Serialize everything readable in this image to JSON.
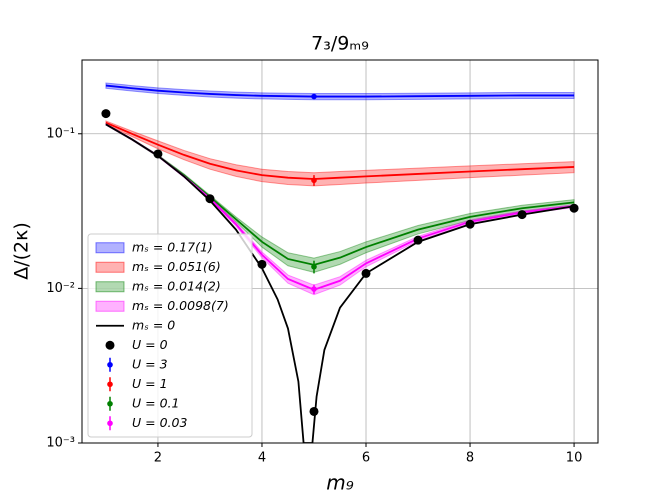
{
  "chart_data": {
    "type": "line",
    "title": "7₃/9ₘ₉",
    "xlabel": "m₉",
    "ylabel": "Δ/(2κ)",
    "xlim": [
      0.54,
      10.46
    ],
    "ylim": [
      0.001,
      0.3
    ],
    "log_y": true,
    "grid": true,
    "legend": "lower left",
    "xticks": [
      2,
      4,
      6,
      8,
      10
    ],
    "yticks": [
      {
        "value": 0.001,
        "label": "10⁻³"
      },
      {
        "value": 0.01,
        "label": "10⁻²"
      },
      {
        "value": 0.1,
        "label": "10⁻¹"
      }
    ],
    "bands": [
      {
        "name": "mₛ = 0.17(1)",
        "color": "#0000ff",
        "x": [
          1,
          1.5,
          2,
          2.5,
          3,
          3.5,
          4,
          4.5,
          5,
          5.5,
          6,
          7,
          8,
          9,
          10
        ],
        "values": [
          0.205,
          0.197,
          0.19,
          0.185,
          0.181,
          0.178,
          0.176,
          0.175,
          0.174,
          0.174,
          0.174,
          0.175,
          0.176,
          0.177,
          0.177
        ],
        "errors": [
          0.008,
          0.008,
          0.008,
          0.008,
          0.008,
          0.008,
          0.008,
          0.008,
          0.008,
          0.008,
          0.008,
          0.008,
          0.008,
          0.008,
          0.008
        ]
      },
      {
        "name": "mₛ = 0.051(6)",
        "color": "#ff0000",
        "x": [
          1,
          1.5,
          2,
          2.5,
          3,
          3.5,
          4,
          4.5,
          5,
          5.5,
          6,
          7,
          8,
          9,
          10
        ],
        "values": [
          0.118,
          0.1,
          0.085,
          0.073,
          0.064,
          0.058,
          0.054,
          0.052,
          0.051,
          0.052,
          0.053,
          0.055,
          0.057,
          0.059,
          0.061
        ],
        "errors": [
          0.003,
          0.004,
          0.005,
          0.005,
          0.005,
          0.005,
          0.005,
          0.005,
          0.005,
          0.005,
          0.005,
          0.005,
          0.005,
          0.005,
          0.005
        ]
      },
      {
        "name": "mₛ = 0.014(2)",
        "color": "#008000",
        "x": [
          1,
          1.5,
          2,
          2.5,
          3,
          3.5,
          4,
          4.5,
          5,
          5.5,
          6,
          7,
          8,
          9,
          10
        ],
        "values": [
          0.115,
          0.092,
          0.072,
          0.054,
          0.039,
          0.028,
          0.02,
          0.0155,
          0.0142,
          0.0158,
          0.0185,
          0.024,
          0.029,
          0.033,
          0.036
        ],
        "errors": [
          0.001,
          0.001,
          0.001,
          0.001,
          0.001,
          0.001,
          0.0015,
          0.0015,
          0.0015,
          0.0015,
          0.0015,
          0.0015,
          0.0015,
          0.0015,
          0.0015
        ]
      },
      {
        "name": "mₛ = 0.0098(7)",
        "color": "#ff00ff",
        "x": [
          1,
          1.5,
          2,
          2.5,
          3,
          3.5,
          4,
          4.5,
          5,
          5.5,
          6,
          7,
          8,
          9,
          10
        ],
        "values": [
          0.115,
          0.092,
          0.072,
          0.053,
          0.038,
          0.026,
          0.0165,
          0.0115,
          0.0098,
          0.0112,
          0.0145,
          0.021,
          0.027,
          0.031,
          0.034
        ],
        "errors": [
          0.0007,
          0.0007,
          0.0007,
          0.0007,
          0.0007,
          0.0007,
          0.0007,
          0.0007,
          0.0007,
          0.0007,
          0.0007,
          0.0007,
          0.0007,
          0.0007,
          0.0007
        ]
      }
    ],
    "lines": [
      {
        "name": "mₛ = 0",
        "color": "#000000",
        "x": [
          1,
          1.5,
          2,
          2.5,
          3,
          3.5,
          4,
          4.3,
          4.5,
          4.7,
          4.8,
          4.97,
          5.05,
          5.2,
          5.5,
          6,
          7,
          8,
          9,
          10
        ],
        "values": [
          0.115,
          0.092,
          0.072,
          0.053,
          0.037,
          0.024,
          0.0135,
          0.0085,
          0.0055,
          0.0025,
          0.001,
          0.001,
          0.002,
          0.004,
          0.0075,
          0.0125,
          0.02,
          0.026,
          0.03,
          0.034
        ]
      }
    ],
    "points": [
      {
        "name": "U = 0",
        "color": "#000000",
        "x": [
          1,
          2,
          3,
          4,
          5,
          6,
          7,
          8,
          9,
          10
        ],
        "values": [
          0.135,
          0.074,
          0.038,
          0.0143,
          0.0016,
          0.0125,
          0.0205,
          0.026,
          0.03,
          0.033
        ]
      }
    ],
    "errorbars": [
      {
        "name": "U = 3",
        "color": "#0000ff",
        "x": [
          5
        ],
        "values": [
          0.174
        ],
        "errors": [
          0.006
        ]
      },
      {
        "name": "U = 1",
        "color": "#ff0000",
        "x": [
          5
        ],
        "values": [
          0.05
        ],
        "errors": [
          0.004
        ]
      },
      {
        "name": "U = 0.1",
        "color": "#008000",
        "x": [
          5
        ],
        "values": [
          0.0138
        ],
        "errors": [
          0.0013
        ]
      },
      {
        "name": "U = 0.03",
        "color": "#ff00ff",
        "x": [
          5
        ],
        "values": [
          0.0099
        ],
        "errors": [
          0.0007
        ]
      }
    ]
  }
}
